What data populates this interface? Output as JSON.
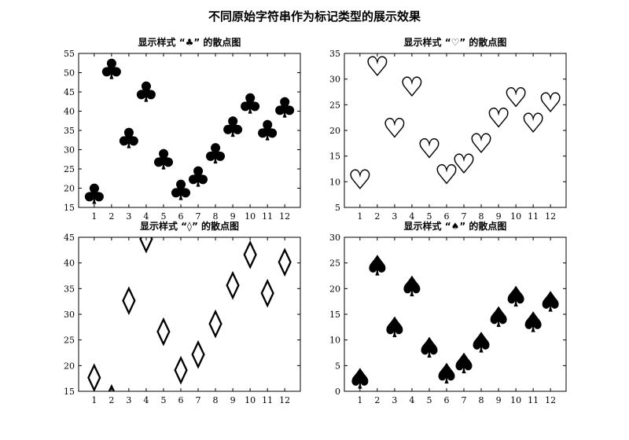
{
  "figure": {
    "title": "不同原始字符串作为标记类型的展示效果"
  },
  "chart_data": [
    {
      "type": "scatter",
      "title": "显示样式 “♣” 的散点图",
      "marker": "♣",
      "marker_color": "#fa8072",
      "marker_edge_color": "#000000",
      "filled": true,
      "x": [
        1,
        2,
        3,
        4,
        5,
        6,
        7,
        8,
        9,
        10,
        11,
        12
      ],
      "y": [
        18.5,
        51,
        33,
        45,
        27.5,
        19.5,
        23,
        29,
        36,
        42,
        35,
        41
      ],
      "xticks": [
        1,
        2,
        3,
        4,
        5,
        6,
        7,
        8,
        9,
        10,
        11,
        12
      ],
      "yticks": [
        15,
        20,
        25,
        30,
        35,
        40,
        45,
        50,
        55
      ],
      "xlim": [
        0.1,
        12.9
      ],
      "ylim": [
        15,
        55
      ],
      "xlabel": "",
      "ylabel": "",
      "grid": false
    },
    {
      "type": "scatter",
      "title": "显示样式 “♡” 的散点图",
      "marker": "♡",
      "marker_color": "#ffffff",
      "marker_edge_color": "#000000",
      "filled": false,
      "x": [
        1,
        2,
        3,
        4,
        5,
        6,
        7,
        8,
        9,
        10,
        11,
        12
      ],
      "y": [
        10.5,
        32.5,
        20.5,
        28.5,
        16.5,
        11.5,
        13.5,
        17.5,
        22.5,
        26.5,
        21.5,
        25.5
      ],
      "xticks": [
        1,
        2,
        3,
        4,
        5,
        6,
        7,
        8,
        9,
        10,
        11,
        12
      ],
      "yticks": [
        5,
        10,
        15,
        20,
        25,
        30,
        35
      ],
      "xlim": [
        0.1,
        12.9
      ],
      "ylim": [
        5,
        35
      ],
      "xlabel": "",
      "ylabel": "",
      "grid": false
    },
    {
      "type": "scatter",
      "title": "显示样式 “◊” 的散点图",
      "marker": "◊",
      "marker_color": "#ffffff",
      "marker_edge_color": "#000000",
      "filled": false,
      "x": [
        1,
        2,
        3,
        4,
        5,
        6,
        7,
        8,
        9,
        10,
        11,
        12
      ],
      "y": [
        18,
        14,
        33,
        45,
        27,
        19.5,
        22.5,
        28.5,
        36,
        42,
        34.5,
        40.5
      ],
      "xticks": [
        1,
        2,
        3,
        4,
        5,
        6,
        7,
        8,
        9,
        10,
        11,
        12
      ],
      "yticks": [
        15,
        20,
        25,
        30,
        35,
        40,
        45
      ],
      "xlim": [
        0.1,
        12.9
      ],
      "ylim": [
        15,
        45
      ],
      "xlabel": "",
      "ylabel": "",
      "grid": false
    },
    {
      "type": "scatter",
      "title": "显示样式 “♠” 的散点图",
      "marker": "♠",
      "marker_color": "#8fd3c4",
      "marker_edge_color": "#000000",
      "filled": true,
      "x": [
        1,
        2,
        3,
        4,
        5,
        6,
        7,
        8,
        9,
        10,
        11,
        12
      ],
      "y": [
        2.5,
        24.5,
        12.5,
        20.5,
        8.5,
        3.5,
        5.5,
        9.5,
        14.5,
        18.5,
        13.5,
        17.5
      ],
      "xticks": [
        1,
        2,
        3,
        4,
        5,
        6,
        7,
        8,
        9,
        10,
        11,
        12
      ],
      "yticks": [
        0,
        5,
        10,
        15,
        20,
        25,
        30
      ],
      "xlim": [
        0.1,
        12.9
      ],
      "ylim": [
        0,
        30
      ],
      "xlabel": "",
      "ylabel": "",
      "grid": false
    }
  ]
}
